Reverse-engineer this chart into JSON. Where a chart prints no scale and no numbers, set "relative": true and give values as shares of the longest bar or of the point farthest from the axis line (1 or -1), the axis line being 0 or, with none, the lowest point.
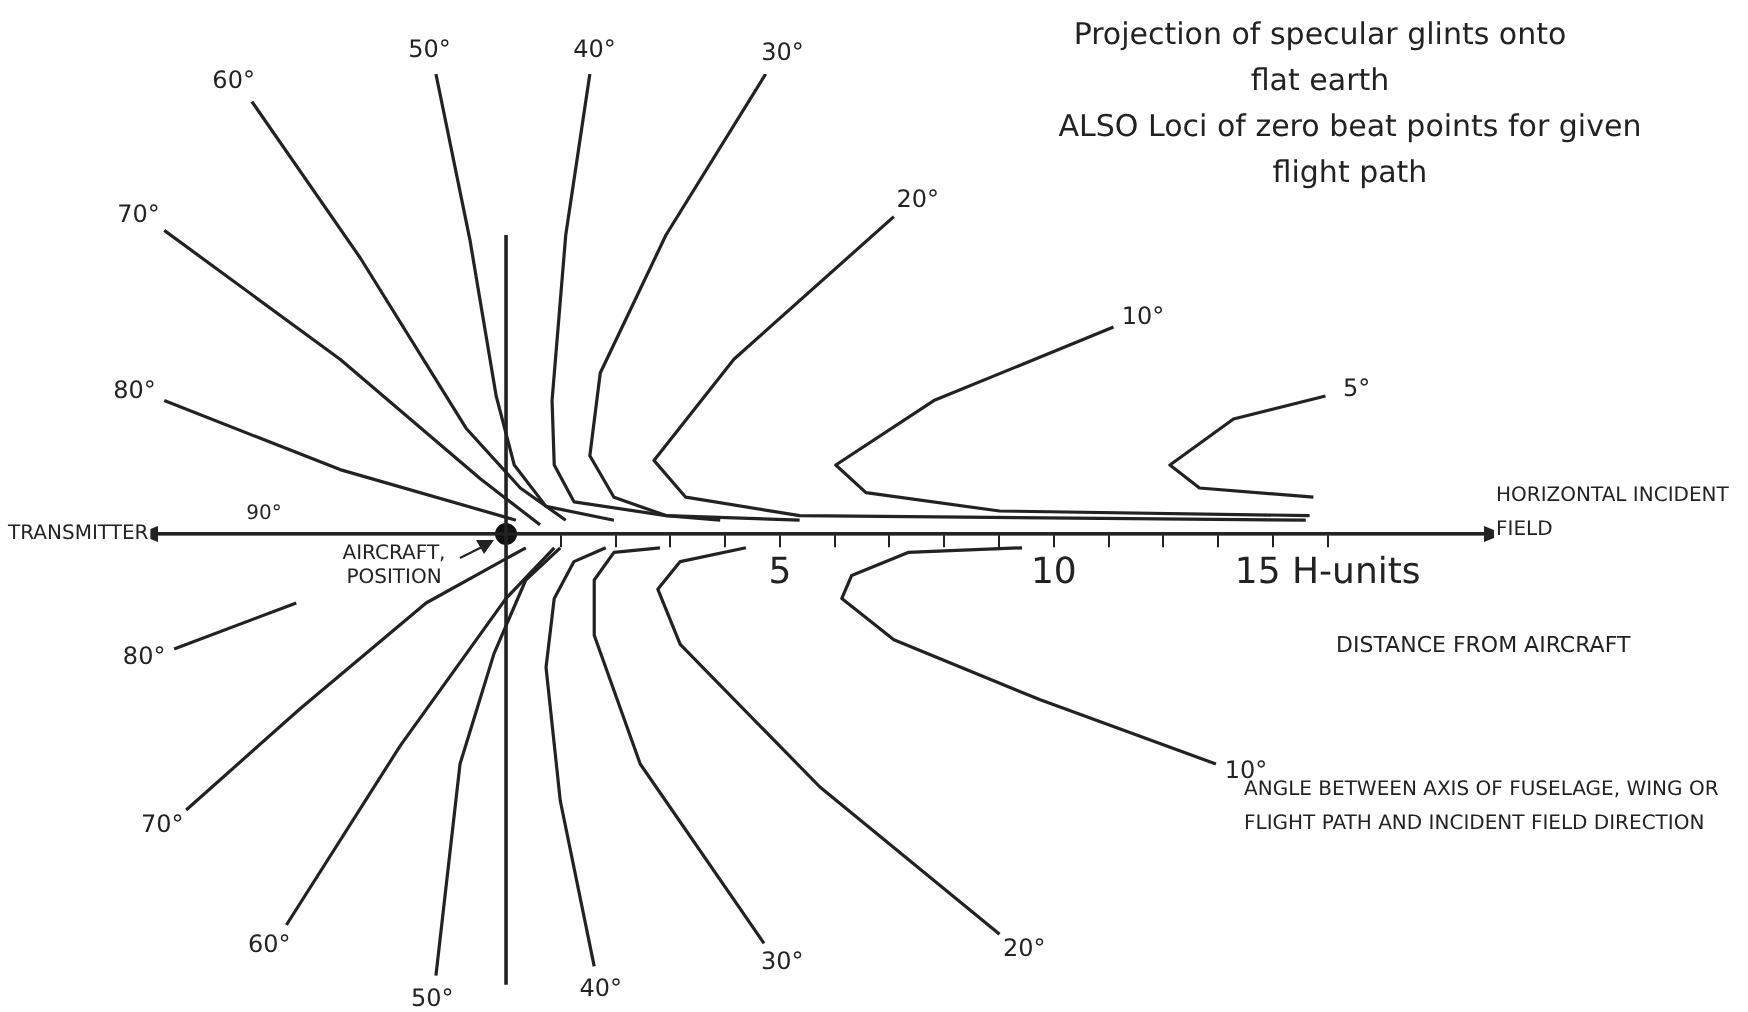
{
  "chart_data": {
    "type": "line",
    "title": "Projection of specular glints onto flat earth",
    "subtitle": "ALSO Loci of zero beat points for given flight path",
    "xlabel": "DISTANCE FROM AIRCRAFT",
    "relative": true,
    "grid": false,
    "legend": false,
    "xlim": [
      -6.5,
      18
    ],
    "xticks": [
      {
        "value": 1,
        "label": null
      },
      {
        "value": 2,
        "label": null
      },
      {
        "value": 3,
        "label": null
      },
      {
        "value": 4,
        "label": null
      },
      5,
      {
        "value": 6,
        "label": null
      },
      {
        "value": 7,
        "label": null
      },
      {
        "value": 8,
        "label": null
      },
      {
        "value": 9,
        "label": null
      },
      10,
      {
        "value": 11,
        "label": null
      },
      {
        "value": 12,
        "label": null
      },
      {
        "value": 13,
        "label": null
      },
      {
        "value": 14,
        "label": null
      },
      {
        "value": 15,
        "label": "15 H-units"
      }
    ],
    "ref_lines": [
      {
        "axis": "x",
        "value": 0,
        "color": "#222222"
      }
    ],
    "annotations": [
      "TRANSMITTER",
      "HORIZONTAL INCIDENT FIELD",
      "ANGLE BETWEEN AXIS OF FUSELAGE, WING OR FLIGHT PATH AND INCIDENT FIELD DIRECTION",
      "90°",
      "AIRCRAFT, POSITION"
    ],
    "series": [
      {
        "name": "80°",
        "color": "#222222",
        "x": [
          -6.24,
          -3.03,
          0.18
        ],
        "values": [
          0.29,
          0.14,
          0.03
        ]
      },
      {
        "name": "70°",
        "color": "#222222",
        "x": [
          -6.24,
          -3.03,
          -0.47,
          0.62
        ],
        "values": [
          0.66,
          0.38,
          0.12,
          0.02
        ]
      },
      {
        "name": "60°",
        "color": "#222222",
        "x": [
          -4.64,
          -2.66,
          -0.73,
          0.26,
          1.09
        ],
        "values": [
          0.94,
          0.6,
          0.23,
          0.1,
          0.03
        ]
      },
      {
        "name": "50°",
        "color": "#222222",
        "x": [
          -1.28,
          -0.66,
          -0.18,
          0.15,
          0.73,
          1.97
        ],
        "values": [
          1.0,
          0.64,
          0.3,
          0.15,
          0.06,
          0.03
        ]
      },
      {
        "name": "40°",
        "color": "#222222",
        "x": [
          1.53,
          1.09,
          0.84,
          0.88,
          1.24,
          2.92,
          3.91
        ],
        "values": [
          1.0,
          0.65,
          0.29,
          0.15,
          0.07,
          0.04,
          0.03
        ]
      },
      {
        "name": "30°",
        "color": "#222222",
        "x": [
          4.74,
          2.92,
          1.72,
          1.53,
          1.97,
          2.92,
          5.36
        ],
        "values": [
          1.0,
          0.65,
          0.35,
          0.17,
          0.08,
          0.04,
          0.03
        ]
      },
      {
        "name": "20°",
        "color": "#222222",
        "x": [
          7.08,
          4.16,
          2.7,
          3.28,
          5.36,
          14.6
        ],
        "values": [
          0.69,
          0.38,
          0.16,
          0.08,
          0.04,
          0.03
        ]
      },
      {
        "name": "10°",
        "color": "#222222",
        "x": [
          11.09,
          7.81,
          6.02,
          6.57,
          9.01,
          14.67
        ],
        "values": [
          0.45,
          0.29,
          0.15,
          0.09,
          0.05,
          0.04
        ]
      },
      {
        "name": "5°",
        "color": "#222222",
        "x": [
          14.96,
          13.28,
          12.12,
          12.66,
          14.74
        ],
        "values": [
          0.3,
          0.25,
          0.15,
          0.1,
          0.08
        ]
      },
      {
        "name": "80°",
        "color": "#222222",
        "x": [
          -6.06,
          -3.83
        ],
        "values": [
          -0.25,
          -0.15
        ]
      },
      {
        "name": "70°",
        "color": "#222222",
        "x": [
          -5.84,
          -3.76,
          -1.46,
          0.36
        ],
        "values": [
          -0.6,
          -0.38,
          -0.15,
          -0.03
        ]
      },
      {
        "name": "60°",
        "color": "#222222",
        "x": [
          -4.01,
          -1.93,
          0,
          0.88
        ],
        "values": [
          -0.85,
          -0.46,
          -0.14,
          -0.03
        ]
      },
      {
        "name": "50°",
        "color": "#222222",
        "x": [
          -1.28,
          -0.84,
          -0.22,
          0.36,
          0.99
        ],
        "values": [
          -0.96,
          -0.5,
          -0.26,
          -0.1,
          -0.03
        ]
      },
      {
        "name": "40°",
        "color": "#222222",
        "x": [
          1.61,
          0.99,
          0.73,
          0.88,
          1.24,
          1.82
        ],
        "values": [
          -0.94,
          -0.58,
          -0.29,
          -0.14,
          -0.06,
          -0.03
        ]
      },
      {
        "name": "30°",
        "color": "#222222",
        "x": [
          4.71,
          2.45,
          1.61,
          1.61,
          1.97,
          2.81
        ],
        "values": [
          -0.89,
          -0.5,
          -0.22,
          -0.1,
          -0.04,
          -0.03
        ]
      },
      {
        "name": "20°",
        "color": "#222222",
        "x": [
          9.01,
          5.73,
          3.18,
          2.77,
          3.18,
          4.38
        ],
        "values": [
          -0.87,
          -0.55,
          -0.24,
          -0.12,
          -0.06,
          -0.03
        ]
      },
      {
        "name": "10°",
        "color": "#222222",
        "x": [
          12.96,
          9.74,
          7.08,
          6.13,
          6.31,
          7.34,
          9.42
        ],
        "values": [
          -0.5,
          -0.36,
          -0.23,
          -0.14,
          -0.09,
          -0.04,
          -0.03
        ]
      },
      {
        "type": "scatter",
        "marker": "circle",
        "color": "#111111",
        "x": [
          0
        ],
        "values": [
          0
        ]
      }
    ]
  }
}
